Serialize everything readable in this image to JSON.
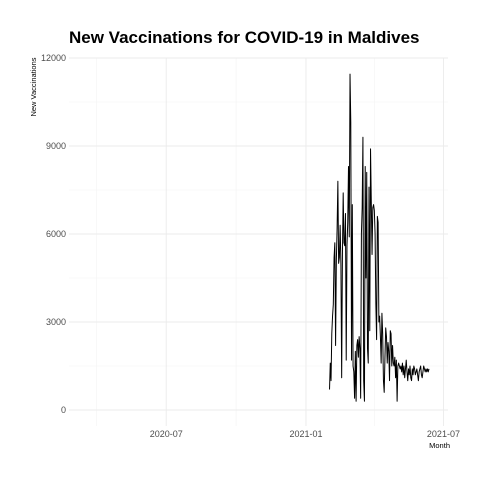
{
  "chart_data": {
    "type": "line",
    "title": "New Vaccinations for COVID-19 in Maldives",
    "xlabel": "Month",
    "ylabel": "New Vaccinations",
    "xlim": [
      "2020-02-24",
      "2021-07-07"
    ],
    "ylim": [
      0,
      12000
    ],
    "yticks": [
      0,
      3000,
      6000,
      9000,
      12000
    ],
    "ytick_labels": [
      "0",
      "3000",
      "6000",
      "9000",
      "12000"
    ],
    "xticks": [
      "2020-07-01",
      "2021-01-01",
      "2021-07-01"
    ],
    "xtick_labels": [
      "2020-07",
      "2021-01",
      "2021-07"
    ],
    "grid": true,
    "colors": {
      "line": "#000000",
      "grid": "#ebebeb"
    },
    "series": [
      {
        "x": [
          "2021-02-01",
          "2021-02-02",
          "2021-02-03",
          "2021-02-04",
          "2021-02-05",
          "2021-02-06",
          "2021-02-07",
          "2021-02-08",
          "2021-02-09",
          "2021-02-10",
          "2021-02-11",
          "2021-02-12",
          "2021-02-13",
          "2021-02-14",
          "2021-02-15",
          "2021-02-16",
          "2021-02-17",
          "2021-02-18",
          "2021-02-19",
          "2021-02-20",
          "2021-02-21",
          "2021-02-22",
          "2021-02-23",
          "2021-02-24",
          "2021-02-25",
          "2021-02-26",
          "2021-02-27",
          "2021-02-28",
          "2021-03-01",
          "2021-03-02",
          "2021-03-03",
          "2021-03-04",
          "2021-03-05",
          "2021-03-06",
          "2021-03-07",
          "2021-03-08",
          "2021-03-09",
          "2021-03-10",
          "2021-03-11",
          "2021-03-12",
          "2021-03-13",
          "2021-03-14",
          "2021-03-15",
          "2021-03-16",
          "2021-03-17",
          "2021-03-18",
          "2021-03-19",
          "2021-03-20",
          "2021-03-21",
          "2021-03-22",
          "2021-03-23",
          "2021-03-24",
          "2021-03-25",
          "2021-03-26",
          "2021-03-27",
          "2021-03-28",
          "2021-03-29",
          "2021-03-30",
          "2021-03-31",
          "2021-04-01",
          "2021-04-02",
          "2021-04-03",
          "2021-04-04",
          "2021-04-05",
          "2021-04-06",
          "2021-04-07",
          "2021-04-08",
          "2021-04-09",
          "2021-04-10",
          "2021-04-11",
          "2021-04-12",
          "2021-04-13",
          "2021-04-14",
          "2021-04-15",
          "2021-04-16",
          "2021-04-17",
          "2021-04-18",
          "2021-04-19",
          "2021-04-20",
          "2021-04-21",
          "2021-04-22",
          "2021-04-23",
          "2021-04-24",
          "2021-04-25",
          "2021-04-26",
          "2021-04-27",
          "2021-04-28",
          "2021-04-29",
          "2021-04-30",
          "2021-05-01",
          "2021-05-02",
          "2021-05-03",
          "2021-05-04",
          "2021-05-05",
          "2021-05-06",
          "2021-05-07",
          "2021-05-08",
          "2021-05-09",
          "2021-05-10",
          "2021-05-11",
          "2021-05-12",
          "2021-05-13",
          "2021-05-14",
          "2021-05-15",
          "2021-05-16",
          "2021-05-17",
          "2021-05-18",
          "2021-05-19",
          "2021-05-20",
          "2021-05-21",
          "2021-05-22",
          "2021-05-23",
          "2021-05-24",
          "2021-05-25",
          "2021-05-26",
          "2021-05-27",
          "2021-05-28",
          "2021-05-29",
          "2021-05-30",
          "2021-05-31",
          "2021-06-01",
          "2021-06-02",
          "2021-06-03",
          "2021-06-04",
          "2021-06-05",
          "2021-06-06",
          "2021-06-07",
          "2021-06-08",
          "2021-06-09",
          "2021-06-10",
          "2021-06-11",
          "2021-06-12"
        ],
        "values": [
          700,
          1600,
          1000,
          2600,
          3200,
          3600,
          5200,
          5700,
          2200,
          5100,
          6200,
          7800,
          5000,
          5200,
          6300,
          5000,
          1100,
          5300,
          7400,
          5700,
          5600,
          6700,
          1700,
          5600,
          6400,
          8300,
          5900,
          11450,
          9800,
          1700,
          7000,
          1500,
          1300,
          400,
          2000,
          300,
          2200,
          2400,
          1800,
          2500,
          2100,
          400,
          6000,
          6900,
          9300,
          1000,
          300,
          8300,
          4500,
          8100,
          2100,
          1600,
          7600,
          2700,
          8900,
          7100,
          5300,
          6900,
          7000,
          6800,
          6000,
          3600,
          2400,
          6600,
          6400,
          3000,
          3200,
          2500,
          1600,
          3300,
          2600,
          1000,
          600,
          1800,
          2800,
          2500,
          1600,
          2300,
          2000,
          1000,
          2700,
          2600,
          1500,
          2200,
          1600,
          1500,
          1800,
          1100,
          1700,
          300,
          1500,
          1600,
          1500,
          1400,
          1500,
          1300,
          1600,
          1200,
          1500,
          1100,
          1400,
          1700,
          1300,
          1000,
          1400,
          1200,
          1500,
          1100,
          1000,
          1400,
          1200,
          1500,
          1400,
          1200,
          1300,
          1400,
          1200,
          1000,
          1300,
          1400,
          1500,
          1200,
          1100,
          1300,
          1500,
          1400,
          1300,
          1400,
          1300,
          1400,
          1300,
          1400
        ]
      }
    ]
  }
}
